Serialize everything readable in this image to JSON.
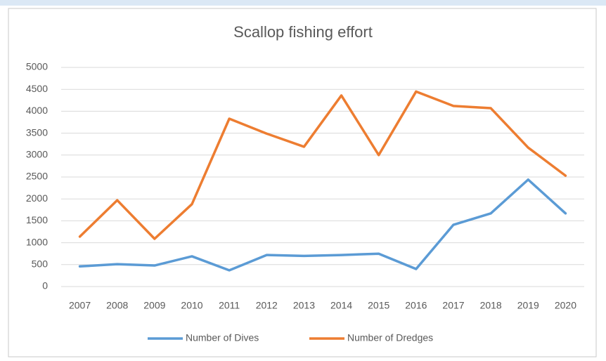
{
  "chart_data": {
    "type": "line",
    "title": "Scallop fishing effort",
    "categories": [
      "2007",
      "2008",
      "2009",
      "2010",
      "2011",
      "2012",
      "2013",
      "2014",
      "2015",
      "2016",
      "2017",
      "2018",
      "2019",
      "2020"
    ],
    "series": [
      {
        "name": "Number of Dives",
        "color": "#5b9bd5",
        "values": [
          460,
          510,
          480,
          690,
          370,
          720,
          700,
          720,
          750,
          400,
          1410,
          1670,
          2440,
          1670
        ]
      },
      {
        "name": "Number of Dredges",
        "color": "#ed7d31",
        "values": [
          1140,
          1970,
          1090,
          1880,
          3830,
          3490,
          3190,
          4360,
          3000,
          4450,
          4120,
          4070,
          3170,
          2530
        ]
      }
    ],
    "ylim": [
      0,
      5000
    ],
    "yticks": [
      0,
      500,
      1000,
      1500,
      2000,
      2500,
      3000,
      3500,
      4000,
      4500,
      5000
    ],
    "grid": true,
    "legend": "bottom"
  }
}
